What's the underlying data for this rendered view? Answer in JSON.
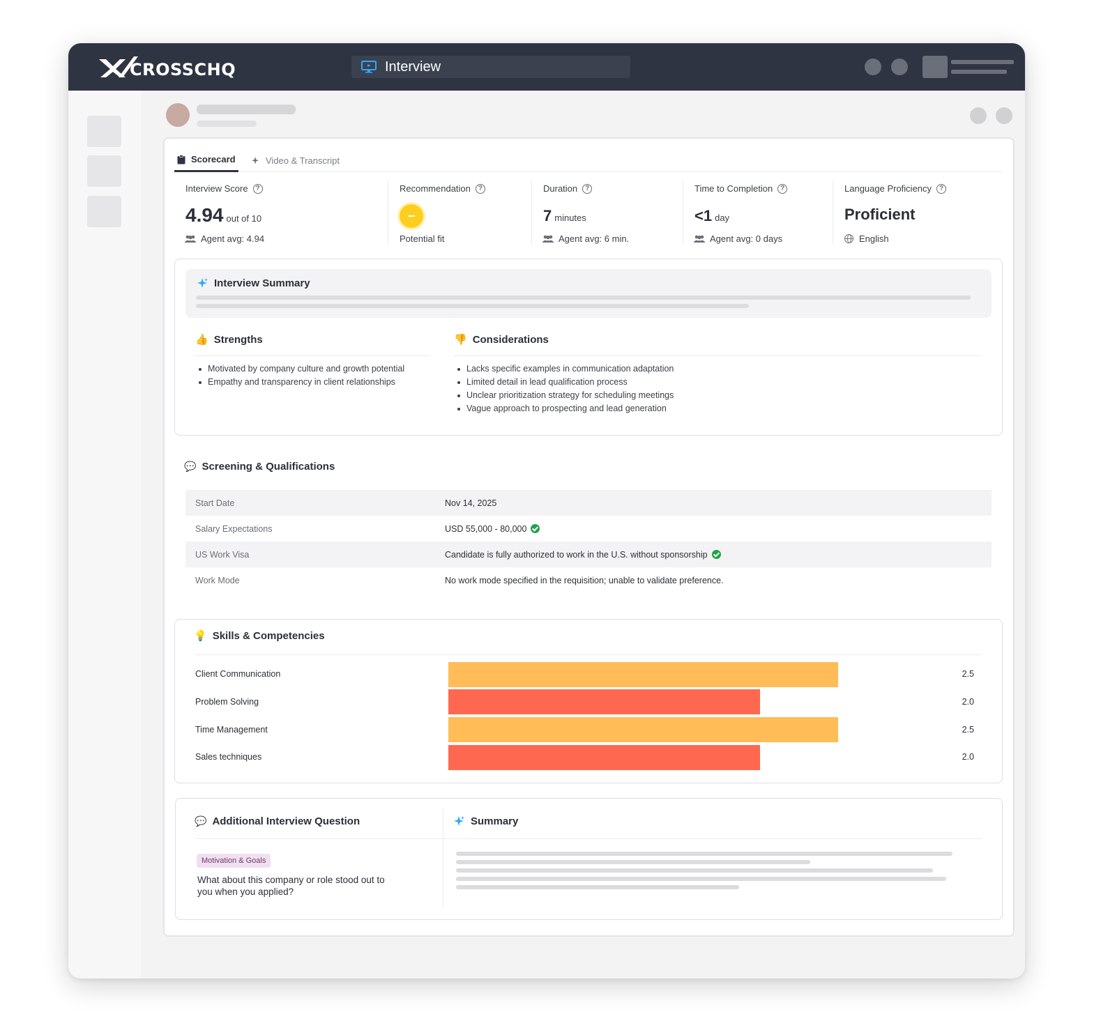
{
  "app": {
    "logo_text": "CROSSCHQ",
    "title": "Interview",
    "accent": "#2f3442"
  },
  "tabs": [
    {
      "label": "Scorecard",
      "icon": "clipboard-icon",
      "active": true
    },
    {
      "label": "Video & Transcript",
      "icon": "sparkle-icon",
      "active": false
    }
  ],
  "metrics": {
    "interview_score": {
      "label": "Interview Score",
      "value": "4.94",
      "unit": "out of 10",
      "sub": "Agent avg: 4.94"
    },
    "recommendation": {
      "label": "Recommendation",
      "sub": "Potential fit",
      "color": "#ffce1f"
    },
    "duration": {
      "label": "Duration",
      "value": "7",
      "unit": "minutes",
      "sub": "Agent avg: 6 min."
    },
    "time_to_completion": {
      "label": "Time to Completion",
      "value": "<1",
      "unit": "day",
      "sub": "Agent avg: 0 days"
    },
    "language_proficiency": {
      "label": "Language Proficiency",
      "value": "Proficient",
      "sub": "English"
    }
  },
  "interview_summary": {
    "title": "Interview Summary",
    "strengths": {
      "title": "Strengths",
      "items": [
        "Motivated by company culture and growth potential",
        "Empathy and transparency in client relationships"
      ]
    },
    "considerations": {
      "title": "Considerations",
      "items": [
        "Lacks specific examples in communication adaptation",
        "Limited detail in lead qualification process",
        "Unclear prioritization strategy for scheduling meetings",
        "Vague approach to prospecting and lead generation"
      ]
    }
  },
  "screening": {
    "title": "Screening & Qualifications",
    "rows": [
      {
        "label": "Start Date",
        "value": "Nov 14, 2025",
        "verified": false
      },
      {
        "label": "Salary Expectations",
        "value": "USD 55,000 - 80,000",
        "verified": true
      },
      {
        "label": "US Work Visa",
        "value": "Candidate is fully authorized to work in the U.S. without sponsorship",
        "verified": true
      },
      {
        "label": "Work Mode",
        "value": "No work mode specified in the requisition; unable to validate preference.",
        "verified": false
      }
    ]
  },
  "skills": {
    "title": "Skills & Competencies",
    "scale_max": 3.5,
    "items": [
      {
        "label": "Client Communication",
        "value": 2.5,
        "display": "2.5",
        "color": "#ffbc57"
      },
      {
        "label": "Problem Solving",
        "value": 2.0,
        "display": "2.0",
        "color": "#ff6850"
      },
      {
        "label": "Time Management",
        "value": 2.5,
        "display": "2.5",
        "color": "#ffbc57"
      },
      {
        "label": "Sales techniques",
        "value": 2.0,
        "display": "2.0",
        "color": "#ff6850"
      }
    ]
  },
  "additional": {
    "title": "Additional Interview Question",
    "tag": "Motivation & Goals",
    "question": "What about this company or role stood out to you when you applied?",
    "summary_title": "Summary"
  }
}
